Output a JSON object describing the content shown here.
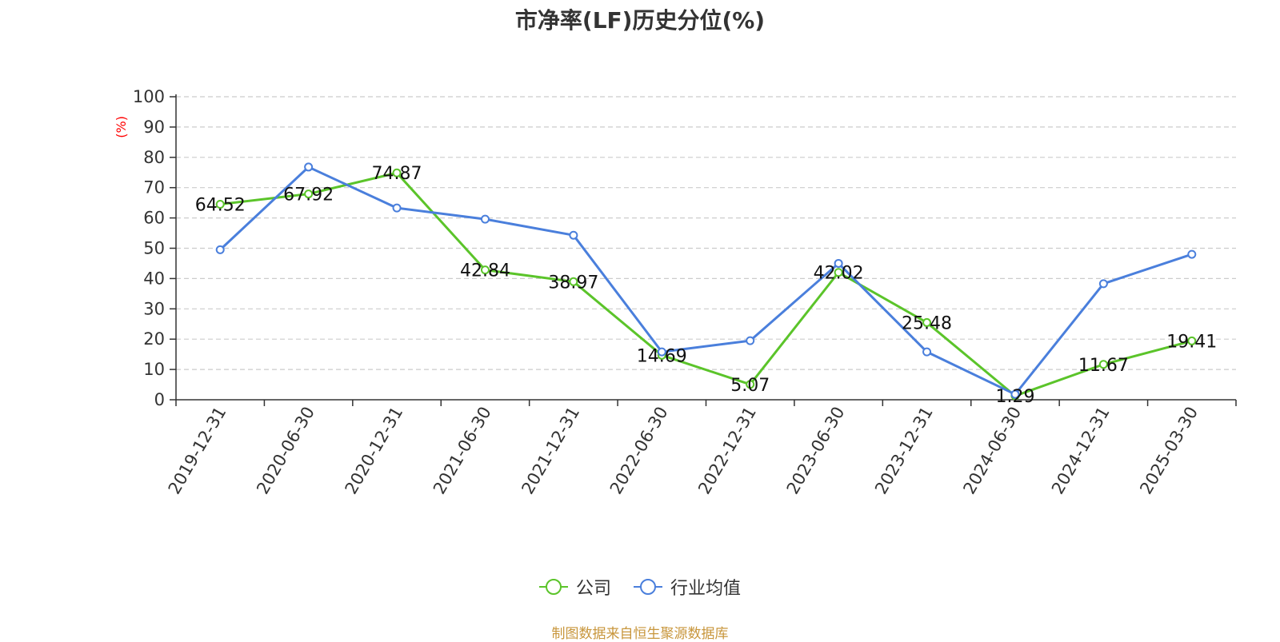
{
  "chart_data": {
    "type": "line",
    "title": "市净率(LF)历史分位(%)",
    "ylabel": "(%)",
    "xlabel": "",
    "ylim": [
      0,
      100
    ],
    "yticks": [
      0,
      10,
      20,
      30,
      40,
      50,
      60,
      70,
      80,
      90,
      100
    ],
    "grid": true,
    "legend_position": "bottom",
    "categories": [
      "2019-12-31",
      "2020-06-30",
      "2020-12-31",
      "2021-06-30",
      "2021-12-31",
      "2022-06-30",
      "2022-12-31",
      "2023-06-30",
      "2023-12-31",
      "2024-06-30",
      "2024-12-31",
      "2025-03-30"
    ],
    "series": [
      {
        "name": "公司",
        "color": "#5bc42a",
        "values": [
          64.52,
          67.92,
          74.87,
          42.84,
          38.97,
          14.69,
          5.07,
          42.02,
          25.48,
          1.29,
          11.67,
          19.41
        ],
        "labels": [
          "64.52",
          "67.92",
          "74.87",
          "42.84",
          "38.97",
          "14.69",
          "5.07",
          "42.02",
          "25.48",
          "1.29",
          "11.67",
          "19.41"
        ]
      },
      {
        "name": "行业均值",
        "color": "#4a7fdc",
        "values": [
          49.5,
          76.8,
          63.3,
          59.6,
          54.3,
          15.8,
          19.5,
          45.0,
          15.8,
          1.8,
          38.3,
          48.0
        ]
      }
    ]
  },
  "footer": {
    "source": "制图数据来自恒生聚源数据库"
  },
  "colors": {
    "axis": "#333333",
    "grid": "#cccccc",
    "ylabel": "#ff0000",
    "footer": "#c8963c"
  }
}
